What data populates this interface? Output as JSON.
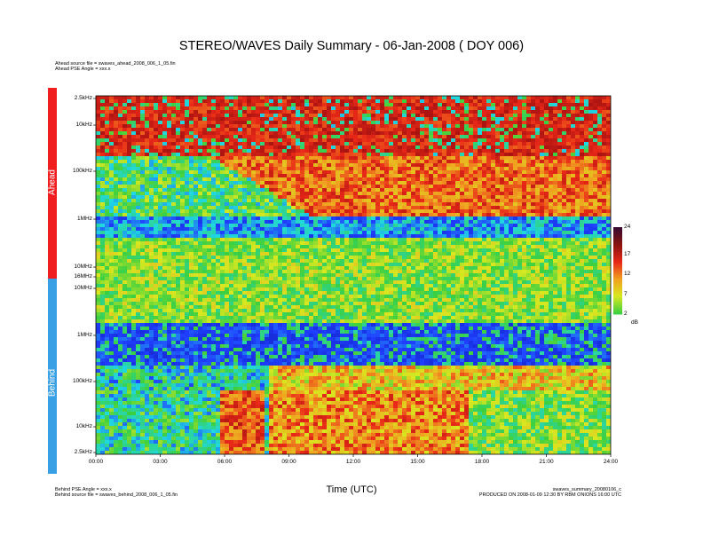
{
  "header": {
    "title": "STEREO/WAVES Daily Summary - 06-Jan-2008 ( DOY 006)",
    "ahead_source": "Ahead source file = swaves_ahead_2008_006_1_05.fin",
    "ahead_pse": "Ahead PSE Angle = xxx.x",
    "behind_pse": "Behind PSE Angle = xxx.x",
    "behind_source": "Behind source file = swaves_behind_2008_006_1_05.fin",
    "summary_id": "swaves_summary_20080106_c",
    "produced": "PRODUCED ON 2008-01-09 12:30 BY RBM ONIONS 16:00 UTC"
  },
  "panels": {
    "ahead_label": "Ahead",
    "behind_label": "Behind",
    "ahead_color": "#f01e1e",
    "behind_color": "#3aa0e6"
  },
  "chart_data": {
    "type": "heatmap",
    "title": "STEREO/WAVES Daily Summary - 06-Jan-2008 ( DOY 006)",
    "xlabel": "Time (UTC)",
    "x_ticks": [
      "00:00",
      "03:00",
      "06:00",
      "09:00",
      "12:00",
      "15:00",
      "18:00",
      "21:00",
      "24:00"
    ],
    "xlim": [
      "00:00",
      "24:00"
    ],
    "ahead_y_ticks": [
      "2.5kHz",
      "10kHz",
      "100kHz",
      "1MHz",
      "10MHz",
      "16MHz"
    ],
    "behind_y_ticks": [
      "10MHz",
      "1MHz",
      "100kHz",
      "10kHz",
      "2.5kHz"
    ],
    "yscale": "log",
    "colorbar": {
      "label": "dB",
      "ticks": [
        24,
        17,
        12,
        7,
        2
      ],
      "range": [
        2,
        24
      ],
      "colors": [
        "#3cd040",
        "#d8e820",
        "#f0a020",
        "#e82818",
        "#8a1410",
        "#3a0a30"
      ]
    }
  }
}
